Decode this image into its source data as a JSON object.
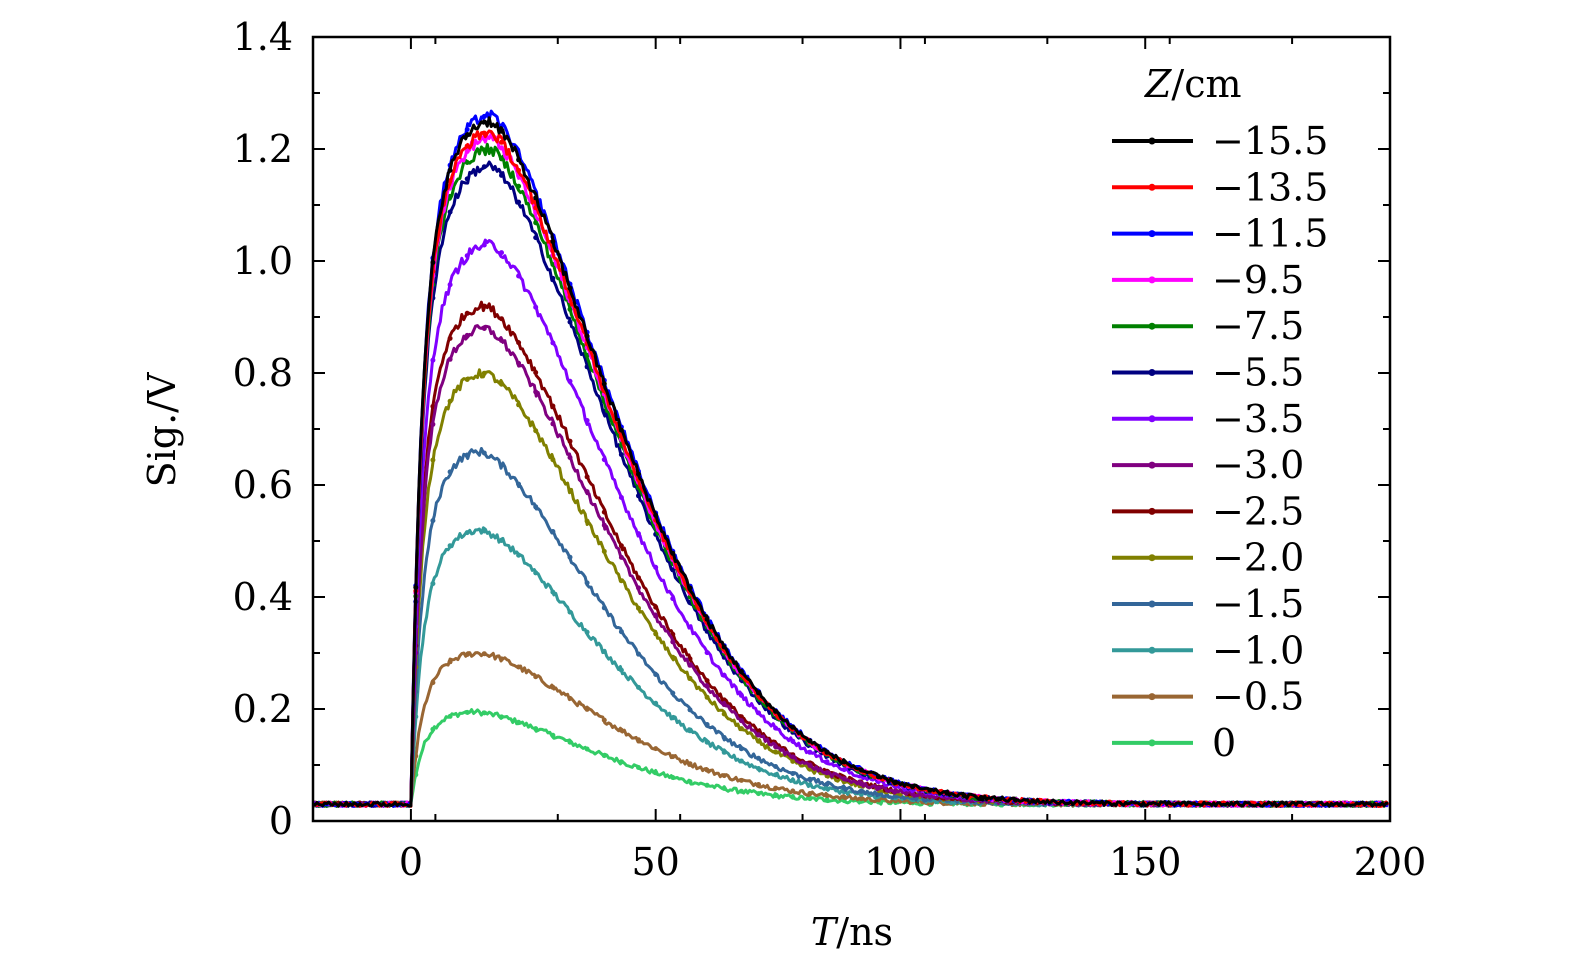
{
  "chart_data": {
    "type": "line",
    "xlabel_var": "T",
    "xlabel_unit": "/ns",
    "ylabel": "Sig./V",
    "xlim": [
      -20,
      200
    ],
    "ylim": [
      0,
      1.4
    ],
    "x_ticks": [
      "0",
      "50",
      "100",
      "150",
      "200"
    ],
    "y_ticks": [
      "0",
      "0.2",
      "0.4",
      "0.6",
      "0.8",
      "1.0",
      "1.2",
      "1.4"
    ],
    "grid": false,
    "legend_position": "top-right",
    "legend_title_var": "Z",
    "legend_title_unit": "/cm",
    "baseline": 0.03,
    "onset_x": 0,
    "series": [
      {
        "name": "−15.5",
        "color": "#000000",
        "peak": 1.25,
        "peak_x": 16
      },
      {
        "name": "−13.5",
        "color": "#ff0000",
        "peak": 1.23,
        "peak_x": 16
      },
      {
        "name": "−11.5",
        "color": "#0000ff",
        "peak": 1.26,
        "peak_x": 16
      },
      {
        "name": "−9.5",
        "color": "#ff00ff",
        "peak": 1.22,
        "peak_x": 16
      },
      {
        "name": "−7.5",
        "color": "#008000",
        "peak": 1.2,
        "peak_x": 16
      },
      {
        "name": "−5.5",
        "color": "#000080",
        "peak": 1.17,
        "peak_x": 16
      },
      {
        "name": "−3.5",
        "color": "#8000ff",
        "peak": 1.03,
        "peak_x": 16
      },
      {
        "name": "−3.0",
        "color": "#800080",
        "peak": 0.88,
        "peak_x": 15
      },
      {
        "name": "−2.5",
        "color": "#800000",
        "peak": 0.92,
        "peak_x": 15
      },
      {
        "name": "−2.0",
        "color": "#808000",
        "peak": 0.8,
        "peak_x": 15
      },
      {
        "name": "−1.5",
        "color": "#336699",
        "peak": 0.66,
        "peak_x": 14
      },
      {
        "name": "−1.0",
        "color": "#339999",
        "peak": 0.52,
        "peak_x": 14
      },
      {
        "name": "−0.5",
        "color": "#996633",
        "peak": 0.3,
        "peak_x": 14
      },
      {
        "name": "0",
        "color": "#33cc66",
        "peak": 0.195,
        "peak_x": 13
      }
    ]
  }
}
